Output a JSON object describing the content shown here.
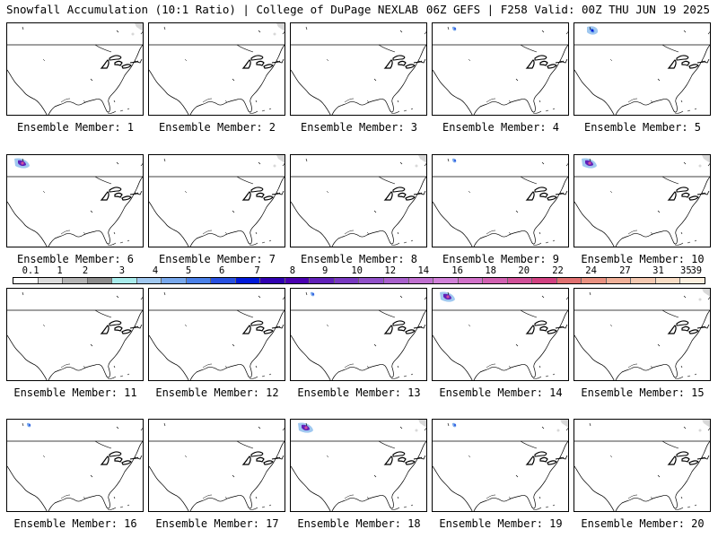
{
  "header": {
    "left": "Snowfall Accumulation (10:1 Ratio) | College of DuPage NEXLAB",
    "right": "06Z GEFS | F258 Valid: 00Z THU JUN 19 2025"
  },
  "members": [
    {
      "label": "Ensemble Member: 1",
      "snow": [
        "NE-light"
      ]
    },
    {
      "label": "Ensemble Member: 2",
      "snow": [
        "NE-light"
      ]
    },
    {
      "label": "Ensemble Member: 3",
      "snow": []
    },
    {
      "label": "Ensemble Member: 4",
      "snow": [
        "NW-blue-small"
      ]
    },
    {
      "label": "Ensemble Member: 5",
      "snow": [
        "NW-blue"
      ]
    },
    {
      "label": "Ensemble Member: 6",
      "snow": [
        "NW-purple"
      ]
    },
    {
      "label": "Ensemble Member: 7",
      "snow": [
        "NE-light"
      ]
    },
    {
      "label": "Ensemble Member: 8",
      "snow": [
        "NE-light"
      ]
    },
    {
      "label": "Ensemble Member: 9",
      "snow": [
        "NW-blue-small"
      ]
    },
    {
      "label": "Ensemble Member: 10",
      "snow": [
        "NW-purple",
        "NE-light"
      ]
    },
    {
      "label": "Ensemble Member: 11",
      "snow": []
    },
    {
      "label": "Ensemble Member: 12",
      "snow": []
    },
    {
      "label": "Ensemble Member: 13",
      "snow": [
        "NW-blue-small"
      ]
    },
    {
      "label": "Ensemble Member: 14",
      "snow": [
        "NW-purple"
      ]
    },
    {
      "label": "Ensemble Member: 15",
      "snow": [
        "NE-light"
      ]
    },
    {
      "label": "Ensemble Member: 16",
      "snow": [
        "NW-blue-small"
      ]
    },
    {
      "label": "Ensemble Member: 17",
      "snow": []
    },
    {
      "label": "Ensemble Member: 18",
      "snow": [
        "NW-purple",
        "NE-light"
      ]
    },
    {
      "label": "Ensemble Member: 19",
      "snow": [
        "NW-blue-small",
        "NE-light"
      ]
    },
    {
      "label": "Ensemble Member: 20",
      "snow": [
        "NE-light"
      ]
    }
  ],
  "colorbar": {
    "ticks": [
      "0.1",
      "1",
      "2",
      "3",
      "4",
      "5",
      "6",
      "7",
      "8",
      "9",
      "10",
      "12",
      "14",
      "16",
      "18",
      "20",
      "22",
      "24",
      "27",
      "31",
      "35",
      "39"
    ],
    "colors": [
      "#ffffff",
      "#dcdcdc",
      "#b4b4b4",
      "#8c8c8c",
      "#a8ecec",
      "#a0c8f0",
      "#78a8ec",
      "#4a80e8",
      "#2850e0",
      "#0018d8",
      "#3000b0",
      "#4a00b0",
      "#6020b8",
      "#7838c0",
      "#9050c8",
      "#a860cc",
      "#c070d0",
      "#d080d8",
      "#d070c8",
      "#d060b0",
      "#d05098",
      "#d04080",
      "#e07070",
      "#e89080",
      "#f0b098",
      "#f4c8b0",
      "#f8dcc4",
      "#fbeede"
    ]
  }
}
